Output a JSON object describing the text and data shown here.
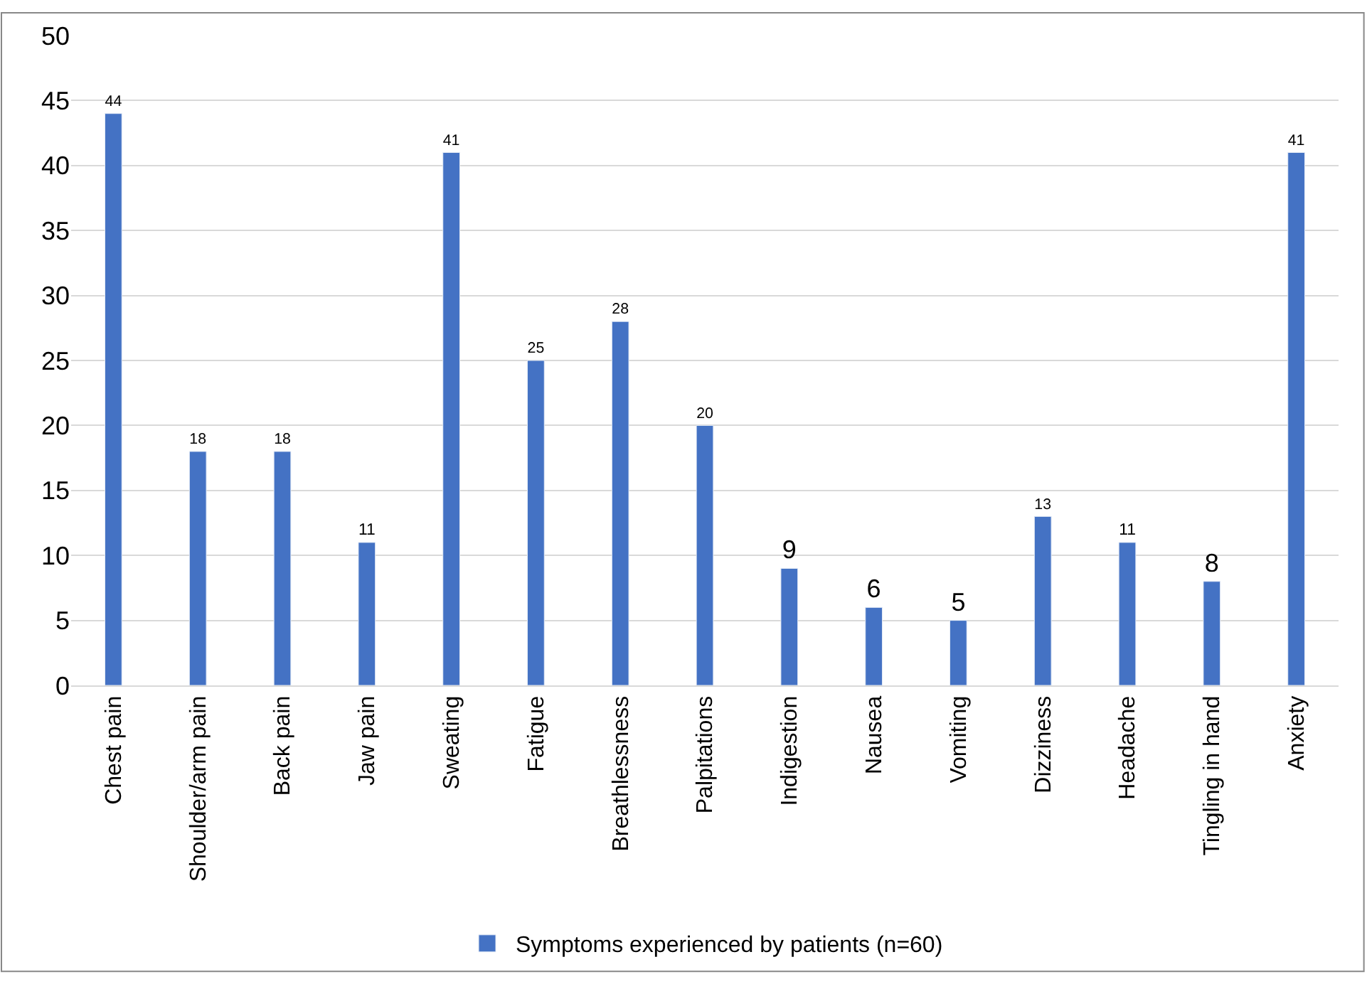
{
  "chart_data": {
    "type": "bar",
    "categories": [
      "Chest pain",
      "Shoulder/arm pain",
      "Back pain",
      "Jaw pain",
      "Sweating",
      "Fatigue",
      "Breathlessness",
      "Palpitations",
      "Indigestion",
      "Nausea",
      "Vomiting",
      "Dizziness",
      "Headache",
      "Tingling in hand",
      "Anxiety"
    ],
    "series": [
      {
        "name": "Symptoms experienced by patients (n=60)",
        "color": "#4472c4",
        "values": [
          44,
          18,
          18,
          11,
          41,
          25,
          28,
          20,
          9,
          6,
          5,
          13,
          11,
          8,
          41
        ]
      }
    ],
    "ylim": [
      0,
      50
    ],
    "yticks": [
      0,
      5,
      10,
      15,
      20,
      25,
      30,
      35,
      40,
      45,
      50
    ],
    "grid": "y",
    "legend": "bottom",
    "data_labels": true
  }
}
